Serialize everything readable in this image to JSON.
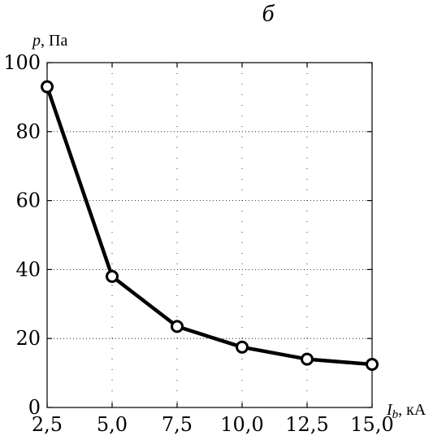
{
  "chart_data": {
    "type": "line",
    "panel_label": "б",
    "ylabel_var": "p",
    "ylabel_unit": ", Па",
    "xlabel_var": "I",
    "xlabel_sub": "b",
    "xlabel_unit": ", кА",
    "x": [
      2.5,
      5.0,
      7.5,
      10.0,
      12.5,
      15.0
    ],
    "y": [
      93,
      38,
      23.5,
      17.5,
      14,
      12.5
    ],
    "xlim": [
      2.5,
      15.0
    ],
    "ylim": [
      0,
      100
    ],
    "xticks": [
      2.5,
      5.0,
      7.5,
      10.0,
      12.5,
      15.0
    ],
    "xtick_labels": [
      "2,5",
      "5,0",
      "7,5",
      "10,0",
      "12,5",
      "15,0"
    ],
    "yticks": [
      0,
      20,
      40,
      60,
      80,
      100
    ],
    "ytick_labels": [
      "0",
      "20",
      "40",
      "60",
      "80",
      "100"
    ],
    "grid": true,
    "marker": "open-circle",
    "line_color": "#000000"
  }
}
